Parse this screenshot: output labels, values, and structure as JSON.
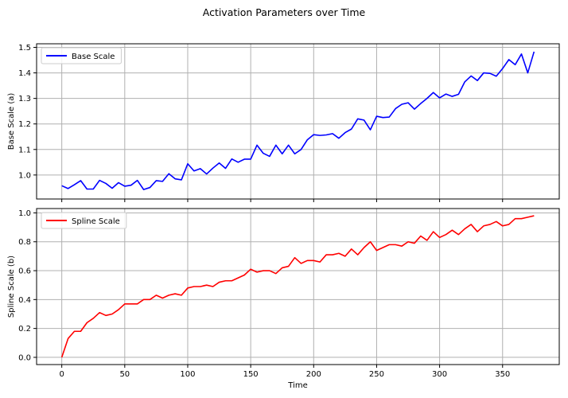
{
  "figure": {
    "title": "Activation Parameters over Time"
  },
  "chart_data": [
    {
      "type": "line",
      "xlabel": "",
      "ylabel": "Base Scale (a)",
      "xlim": [
        -20,
        395
      ],
      "ylim": [
        0.906,
        1.514
      ],
      "xticks": [
        0,
        50,
        100,
        150,
        200,
        250,
        300,
        350
      ],
      "yticks": [
        1.0,
        1.1,
        1.2,
        1.3,
        1.4,
        1.5
      ],
      "ytick_labels": [
        "1.0",
        "1.1",
        "1.2",
        "1.3",
        "1.4",
        "1.5"
      ],
      "xtick_labels_visible": false,
      "grid": true,
      "legend": "top-left",
      "series": [
        {
          "name": "Base Scale",
          "color": "#0000ff",
          "x": [
            0,
            5,
            10,
            15,
            20,
            25,
            30,
            35,
            40,
            45,
            50,
            55,
            60,
            65,
            70,
            75,
            80,
            85,
            90,
            95,
            100,
            105,
            110,
            115,
            120,
            125,
            130,
            135,
            140,
            145,
            150,
            155,
            160,
            165,
            170,
            175,
            180,
            185,
            190,
            195,
            200,
            205,
            210,
            215,
            220,
            225,
            230,
            235,
            240,
            245,
            250,
            255,
            260,
            265,
            270,
            275,
            280,
            285,
            290,
            295,
            300,
            305,
            310,
            315,
            320,
            325,
            330,
            335,
            340,
            345,
            350,
            355,
            360,
            365,
            370,
            375
          ],
          "y": [
            0.958,
            0.947,
            0.962,
            0.978,
            0.945,
            0.945,
            0.979,
            0.967,
            0.948,
            0.97,
            0.956,
            0.96,
            0.979,
            0.943,
            0.951,
            0.978,
            0.975,
            1.005,
            0.985,
            0.981,
            1.044,
            1.016,
            1.025,
            1.004,
            1.027,
            1.047,
            1.026,
            1.063,
            1.05,
            1.062,
            1.062,
            1.117,
            1.085,
            1.073,
            1.117,
            1.083,
            1.117,
            1.083,
            1.1,
            1.138,
            1.158,
            1.155,
            1.157,
            1.162,
            1.144,
            1.166,
            1.18,
            1.22,
            1.215,
            1.177,
            1.23,
            1.225,
            1.227,
            1.26,
            1.277,
            1.283,
            1.258,
            1.28,
            1.3,
            1.323,
            1.302,
            1.317,
            1.308,
            1.316,
            1.365,
            1.388,
            1.37,
            1.4,
            1.398,
            1.387,
            1.417,
            1.452,
            1.432,
            1.474,
            1.4,
            1.483
          ]
        }
      ]
    },
    {
      "type": "line",
      "xlabel": "Time",
      "ylabel": "Spline Scale (b)",
      "xlim": [
        -20,
        395
      ],
      "ylim": [
        -0.05,
        1.03
      ],
      "xticks": [
        0,
        50,
        100,
        150,
        200,
        250,
        300,
        350
      ],
      "yticks": [
        0.0,
        0.2,
        0.4,
        0.6,
        0.8,
        1.0
      ],
      "ytick_labels": [
        "0.0",
        "0.2",
        "0.4",
        "0.6",
        "0.8",
        "1.0"
      ],
      "xtick_labels_visible": true,
      "grid": true,
      "legend": "top-left",
      "series": [
        {
          "name": "Spline Scale",
          "color": "#ff0000",
          "x": [
            0,
            5,
            10,
            15,
            20,
            25,
            30,
            35,
            40,
            45,
            50,
            55,
            60,
            65,
            70,
            75,
            80,
            85,
            90,
            95,
            100,
            105,
            110,
            115,
            120,
            125,
            130,
            135,
            140,
            145,
            150,
            155,
            160,
            165,
            170,
            175,
            180,
            185,
            190,
            195,
            200,
            205,
            210,
            215,
            220,
            225,
            230,
            235,
            240,
            245,
            250,
            255,
            260,
            265,
            270,
            275,
            280,
            285,
            290,
            295,
            300,
            305,
            310,
            315,
            320,
            325,
            330,
            335,
            340,
            345,
            350,
            355,
            360,
            365,
            370,
            375
          ],
          "y": [
            0.0,
            0.13,
            0.18,
            0.18,
            0.24,
            0.27,
            0.31,
            0.29,
            0.3,
            0.33,
            0.37,
            0.37,
            0.37,
            0.4,
            0.4,
            0.43,
            0.41,
            0.43,
            0.44,
            0.43,
            0.48,
            0.49,
            0.49,
            0.5,
            0.49,
            0.52,
            0.53,
            0.53,
            0.55,
            0.57,
            0.61,
            0.59,
            0.6,
            0.6,
            0.58,
            0.62,
            0.63,
            0.69,
            0.65,
            0.67,
            0.67,
            0.66,
            0.71,
            0.71,
            0.72,
            0.7,
            0.75,
            0.71,
            0.76,
            0.8,
            0.74,
            0.76,
            0.78,
            0.78,
            0.77,
            0.8,
            0.79,
            0.84,
            0.81,
            0.87,
            0.83,
            0.85,
            0.88,
            0.85,
            0.89,
            0.92,
            0.87,
            0.91,
            0.92,
            0.94,
            0.91,
            0.92,
            0.96,
            0.96,
            0.97,
            0.98
          ]
        }
      ]
    }
  ]
}
